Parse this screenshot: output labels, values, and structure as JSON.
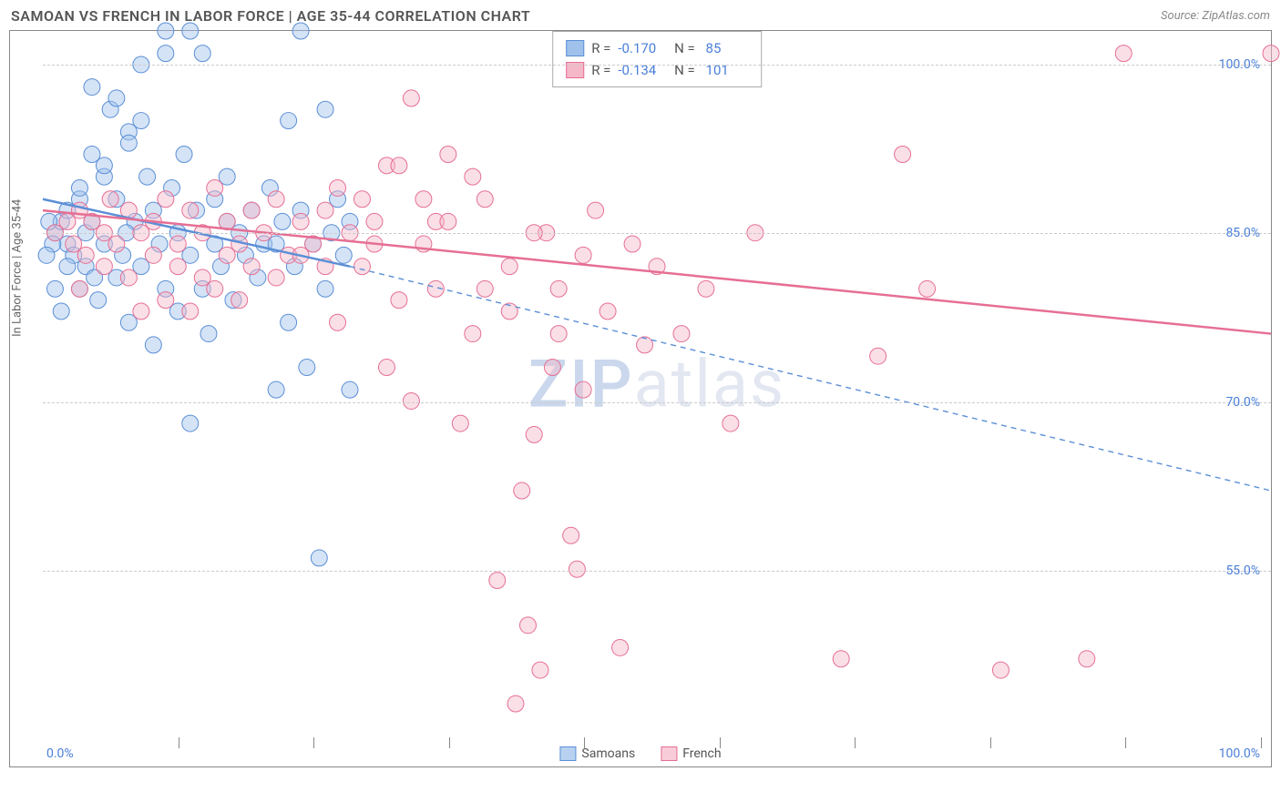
{
  "header": {
    "title": "SAMOAN VS FRENCH IN LABOR FORCE | AGE 35-44 CORRELATION CHART",
    "source": "Source: ZipAtlas.com"
  },
  "chart": {
    "type": "scatter",
    "y_axis_label": "In Labor Force | Age 35-44",
    "x_range": [
      0,
      100
    ],
    "y_range": [
      40,
      103
    ],
    "x_min_label": "0.0%",
    "x_max_label": "100.0%",
    "x_ticks": [
      11,
      22,
      33,
      44,
      55,
      66,
      77,
      88,
      99
    ],
    "y_gridlines": [
      55,
      70,
      85,
      100
    ],
    "y_tick_labels": [
      "55.0%",
      "70.0%",
      "85.0%",
      "100.0%"
    ],
    "background_color": "#ffffff",
    "grid_color": "#cccccc",
    "text_color": "#666666",
    "value_color": "#4a7fd8",
    "watermark": "ZIPatlas",
    "series": [
      {
        "name": "Samoans",
        "color": "#9fc1ec",
        "stroke": "#5b8fd6",
        "marker_radius": 9,
        "fill_opacity": 0.45,
        "R": "-0.170",
        "N": "85",
        "trendline": {
          "x1": 0,
          "y1": 88,
          "x2": 25,
          "y2": 82,
          "style": "solid",
          "width": 2.5
        },
        "trendline_ext": {
          "x1": 25,
          "y1": 82,
          "x2": 100,
          "y2": 62,
          "style": "dashed",
          "width": 1.4
        },
        "points": [
          [
            1,
            85
          ],
          [
            1.5,
            86
          ],
          [
            2,
            84
          ],
          [
            2,
            87
          ],
          [
            2.5,
            83
          ],
          [
            3,
            88
          ],
          [
            3,
            80
          ],
          [
            3.5,
            85
          ],
          [
            4,
            92
          ],
          [
            4,
            86
          ],
          [
            4.5,
            79
          ],
          [
            5,
            90
          ],
          [
            5,
            84
          ],
          [
            5.5,
            96
          ],
          [
            6,
            81
          ],
          [
            6,
            88
          ],
          [
            6.5,
            83
          ],
          [
            7,
            94
          ],
          [
            7,
            77
          ],
          [
            7.5,
            86
          ],
          [
            8,
            100
          ],
          [
            8,
            82
          ],
          [
            8.5,
            90
          ],
          [
            9,
            75
          ],
          [
            9,
            87
          ],
          [
            9.5,
            84
          ],
          [
            10,
            101
          ],
          [
            10,
            80
          ],
          [
            10.5,
            89
          ],
          [
            11,
            78
          ],
          [
            11,
            85
          ],
          [
            11.5,
            92
          ],
          [
            12,
            68
          ],
          [
            12,
            83
          ],
          [
            12.5,
            87
          ],
          [
            13,
            101
          ],
          [
            13,
            80
          ],
          [
            13.5,
            76
          ],
          [
            14,
            88
          ],
          [
            14,
            84
          ],
          [
            14.5,
            82
          ],
          [
            15,
            90
          ],
          [
            15,
            86
          ],
          [
            15.5,
            79
          ],
          [
            16,
            85
          ],
          [
            16.5,
            83
          ],
          [
            17,
            87
          ],
          [
            17.5,
            81
          ],
          [
            18,
            84
          ],
          [
            18.5,
            89
          ],
          [
            19,
            71
          ],
          [
            19,
            84
          ],
          [
            19.5,
            86
          ],
          [
            20,
            95
          ],
          [
            20,
            77
          ],
          [
            20.5,
            82
          ],
          [
            21,
            87
          ],
          [
            21.5,
            73
          ],
          [
            22,
            84
          ],
          [
            22.5,
            56
          ],
          [
            23,
            96
          ],
          [
            23,
            80
          ],
          [
            23.5,
            85
          ],
          [
            24,
            88
          ],
          [
            24.5,
            83
          ],
          [
            25,
            71
          ],
          [
            25,
            86
          ],
          [
            10,
            103
          ],
          [
            12,
            103
          ],
          [
            21,
            103
          ],
          [
            4,
            98
          ],
          [
            6,
            97
          ],
          [
            8,
            95
          ],
          [
            7,
            93
          ],
          [
            5,
            91
          ],
          [
            3,
            89
          ],
          [
            2,
            82
          ],
          [
            1,
            80
          ],
          [
            1.5,
            78
          ],
          [
            0.8,
            84
          ],
          [
            0.5,
            86
          ],
          [
            0.3,
            83
          ],
          [
            3.5,
            82
          ],
          [
            4.2,
            81
          ],
          [
            6.8,
            85
          ]
        ]
      },
      {
        "name": "French",
        "color": "#f5b8c9",
        "stroke": "#e66f94",
        "marker_radius": 9,
        "fill_opacity": 0.45,
        "R": "-0.134",
        "N": "101",
        "trendline": {
          "x1": 0,
          "y1": 87,
          "x2": 100,
          "y2": 76,
          "style": "solid",
          "width": 2.5
        },
        "points": [
          [
            1,
            85
          ],
          [
            2,
            86
          ],
          [
            2.5,
            84
          ],
          [
            3,
            87
          ],
          [
            3.5,
            83
          ],
          [
            4,
            86
          ],
          [
            5,
            85
          ],
          [
            5.5,
            88
          ],
          [
            6,
            84
          ],
          [
            7,
            87
          ],
          [
            8,
            85
          ],
          [
            9,
            86
          ],
          [
            10,
            88
          ],
          [
            11,
            84
          ],
          [
            12,
            87
          ],
          [
            13,
            85
          ],
          [
            14,
            89
          ],
          [
            15,
            86
          ],
          [
            16,
            84
          ],
          [
            17,
            87
          ],
          [
            18,
            85
          ],
          [
            19,
            88
          ],
          [
            20,
            83
          ],
          [
            21,
            86
          ],
          [
            22,
            84
          ],
          [
            23,
            87
          ],
          [
            24,
            77
          ],
          [
            25,
            85
          ],
          [
            26,
            82
          ],
          [
            27,
            86
          ],
          [
            28,
            91
          ],
          [
            29,
            79
          ],
          [
            30,
            97
          ],
          [
            31,
            84
          ],
          [
            32,
            86
          ],
          [
            33,
            92
          ],
          [
            34,
            68
          ],
          [
            35,
            76
          ],
          [
            36,
            88
          ],
          [
            37,
            54
          ],
          [
            38,
            82
          ],
          [
            38.5,
            43
          ],
          [
            39,
            62
          ],
          [
            39.5,
            50
          ],
          [
            40,
            67
          ],
          [
            40.5,
            46
          ],
          [
            41,
            85
          ],
          [
            41.5,
            73
          ],
          [
            42,
            80
          ],
          [
            43,
            58
          ],
          [
            43.5,
            55
          ],
          [
            44,
            71
          ],
          [
            45,
            87
          ],
          [
            46,
            78
          ],
          [
            47,
            48
          ],
          [
            48,
            84
          ],
          [
            49,
            75
          ],
          [
            50,
            82
          ],
          [
            52,
            76
          ],
          [
            54,
            80
          ],
          [
            56,
            68
          ],
          [
            58,
            85
          ],
          [
            65,
            47
          ],
          [
            68,
            74
          ],
          [
            70,
            92
          ],
          [
            72,
            80
          ],
          [
            78,
            46
          ],
          [
            85,
            47
          ],
          [
            88,
            101
          ],
          [
            100,
            101
          ],
          [
            3,
            80
          ],
          [
            5,
            82
          ],
          [
            7,
            81
          ],
          [
            9,
            83
          ],
          [
            11,
            82
          ],
          [
            13,
            81
          ],
          [
            15,
            83
          ],
          [
            17,
            82
          ],
          [
            19,
            81
          ],
          [
            21,
            83
          ],
          [
            23,
            82
          ],
          [
            8,
            78
          ],
          [
            10,
            79
          ],
          [
            12,
            78
          ],
          [
            14,
            80
          ],
          [
            16,
            79
          ],
          [
            28,
            73
          ],
          [
            30,
            70
          ],
          [
            32,
            80
          ],
          [
            35,
            90
          ],
          [
            29,
            91
          ],
          [
            31,
            88
          ],
          [
            33,
            86
          ],
          [
            27,
            84
          ],
          [
            26,
            88
          ],
          [
            24,
            89
          ],
          [
            36,
            80
          ],
          [
            38,
            78
          ],
          [
            40,
            85
          ],
          [
            42,
            76
          ],
          [
            44,
            83
          ]
        ]
      }
    ],
    "legend": {
      "items": [
        {
          "label": "Samoans",
          "fill": "#b8d1f0",
          "stroke": "#5b8fd6"
        },
        {
          "label": "French",
          "fill": "#f8cdd9",
          "stroke": "#e66f94"
        }
      ]
    }
  }
}
